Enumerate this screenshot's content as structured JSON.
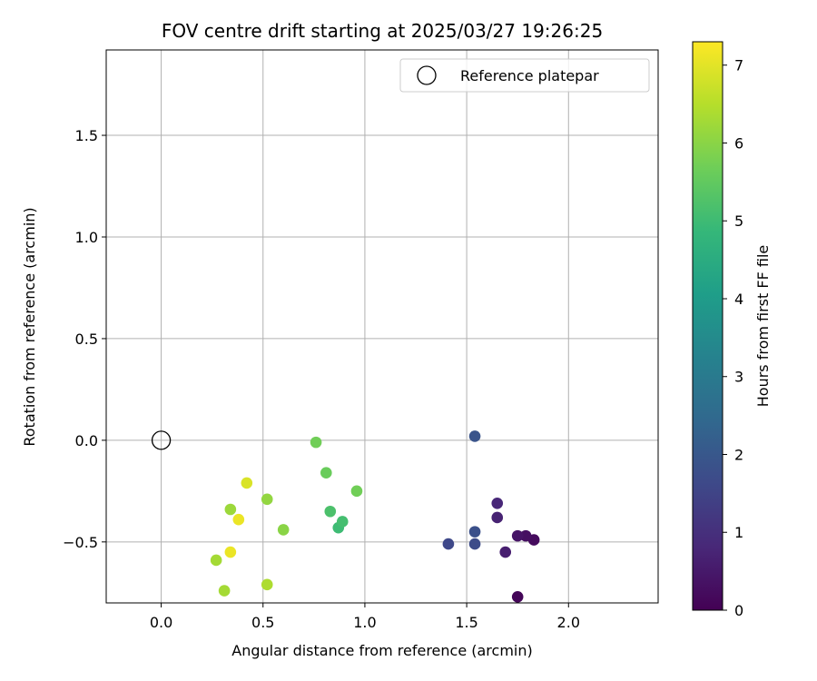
{
  "chart_data": {
    "type": "scatter",
    "title": "FOV centre drift starting at 2025/03/27 19:26:25",
    "xlabel": "Angular distance from reference (arcmin)",
    "ylabel": "Rotation from reference (arcmin)",
    "xlim": [
      -0.27,
      2.44
    ],
    "ylim": [
      -0.8,
      1.92
    ],
    "x_ticks": [
      0.0,
      0.5,
      1.0,
      1.5,
      2.0
    ],
    "x_tick_labels": [
      "0.0",
      "0.5",
      "1.0",
      "1.5",
      "2.0"
    ],
    "y_ticks": [
      -0.5,
      0.0,
      0.5,
      1.0,
      1.5
    ],
    "y_tick_labels": [
      "−0.5",
      "0.0",
      "0.5",
      "1.0",
      "1.5"
    ],
    "grid": true,
    "legend": {
      "placement": "upper right",
      "entries": [
        "Reference platepar"
      ]
    },
    "reference_point": {
      "x": 0.0,
      "y": 0.0,
      "label": "Reference platepar",
      "marker": "open-circle",
      "color": "#000000"
    },
    "colorbar": {
      "label": "Hours from first FF file",
      "min": 0,
      "max": 7.3,
      "ticks": [
        0,
        1,
        2,
        3,
        4,
        5,
        6,
        7
      ],
      "tick_labels": [
        "0",
        "1",
        "2",
        "3",
        "4",
        "5",
        "6",
        "7"
      ],
      "colormap": "viridis",
      "stops": [
        "#440154",
        "#482878",
        "#3e4989",
        "#31688e",
        "#26828e",
        "#1f9e89",
        "#35b779",
        "#6ece58",
        "#b5de2b",
        "#fde725"
      ]
    },
    "points": [
      {
        "x": 1.75,
        "y": -0.77,
        "hours": 0.1
      },
      {
        "x": 1.83,
        "y": -0.49,
        "hours": 0.2
      },
      {
        "x": 1.79,
        "y": -0.47,
        "hours": 0.3
      },
      {
        "x": 1.75,
        "y": -0.47,
        "hours": 0.4
      },
      {
        "x": 1.69,
        "y": -0.55,
        "hours": 0.6
      },
      {
        "x": 1.65,
        "y": -0.38,
        "hours": 0.7
      },
      {
        "x": 1.65,
        "y": -0.31,
        "hours": 0.8
      },
      {
        "x": 1.41,
        "y": -0.51,
        "hours": 1.6
      },
      {
        "x": 1.54,
        "y": -0.51,
        "hours": 1.7
      },
      {
        "x": 1.54,
        "y": -0.45,
        "hours": 1.8
      },
      {
        "x": 1.54,
        "y": 0.02,
        "hours": 1.9
      },
      {
        "x": 0.87,
        "y": -0.43,
        "hours": 5.0
      },
      {
        "x": 0.89,
        "y": -0.4,
        "hours": 5.1
      },
      {
        "x": 0.83,
        "y": -0.35,
        "hours": 5.2
      },
      {
        "x": 0.81,
        "y": -0.16,
        "hours": 5.6
      },
      {
        "x": 0.96,
        "y": -0.25,
        "hours": 5.7
      },
      {
        "x": 0.76,
        "y": -0.01,
        "hours": 5.7
      },
      {
        "x": 0.6,
        "y": -0.44,
        "hours": 6.0
      },
      {
        "x": 0.52,
        "y": -0.29,
        "hours": 6.1
      },
      {
        "x": 0.34,
        "y": -0.34,
        "hours": 6.2
      },
      {
        "x": 0.27,
        "y": -0.59,
        "hours": 6.3
      },
      {
        "x": 0.31,
        "y": -0.74,
        "hours": 6.3
      },
      {
        "x": 0.52,
        "y": -0.71,
        "hours": 6.4
      },
      {
        "x": 0.42,
        "y": -0.21,
        "hours": 6.9
      },
      {
        "x": 0.38,
        "y": -0.39,
        "hours": 7.1
      },
      {
        "x": 0.34,
        "y": -0.55,
        "hours": 7.1
      }
    ]
  }
}
